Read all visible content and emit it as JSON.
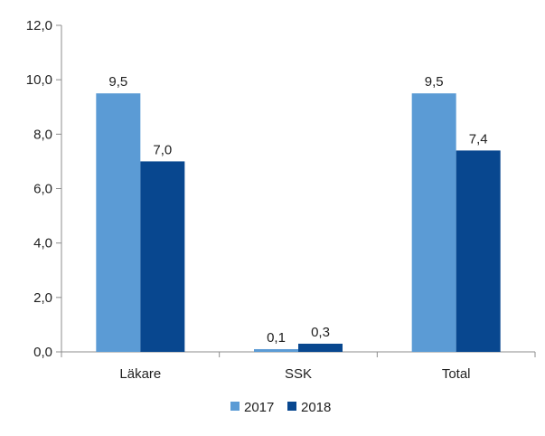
{
  "chart_data": {
    "type": "bar",
    "categories": [
      "Läkare",
      "SSK",
      "Total"
    ],
    "series": [
      {
        "name": "2017",
        "color": "#5b9bd5",
        "values": [
          9.5,
          0.1,
          9.5
        ],
        "labels": [
          "9,5",
          "0,1",
          "9,5"
        ]
      },
      {
        "name": "2018",
        "color": "#08478f",
        "values": [
          7.0,
          0.3,
          7.4
        ],
        "labels": [
          "7,0",
          "0,3",
          "7,4"
        ]
      }
    ],
    "ylim": [
      0,
      12
    ],
    "yticks": [
      0,
      2,
      4,
      6,
      8,
      10,
      12
    ],
    "ytick_labels": [
      "0,0",
      "2,0",
      "4,0",
      "6,0",
      "8,0",
      "10,0",
      "12,0"
    ],
    "grid": false,
    "legend": "bottom-center"
  }
}
